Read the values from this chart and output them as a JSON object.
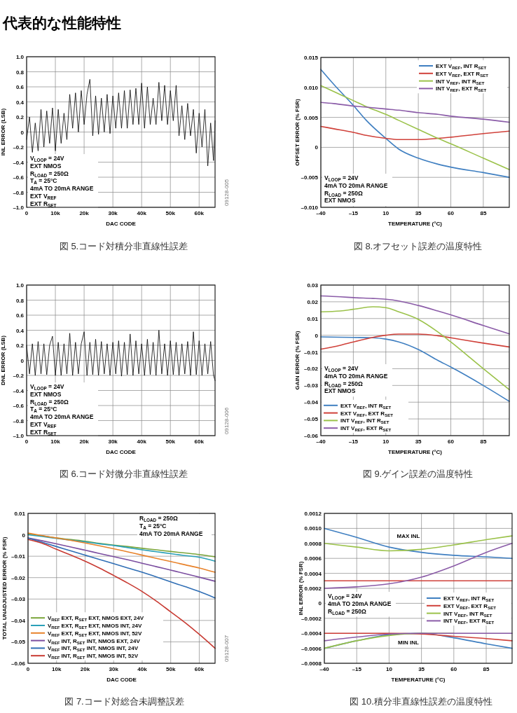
{
  "chart_data": [
    {
      "type": "other",
      "title": "代表的な性能特性"
    },
    {
      "type": "line",
      "title": "図 5.コード対積分非直線性誤差",
      "xlabel": "DAC CODE",
      "ylabel": "INL ERROR (LSB)",
      "xlim": [
        0,
        65535
      ],
      "ylim": [
        -1,
        1
      ],
      "xticks": [
        0,
        {
          "value": 10000,
          "label": "10k"
        },
        {
          "value": 20000,
          "label": "20k"
        },
        {
          "value": 30000,
          "label": "30k"
        },
        {
          "value": 40000,
          "label": "40k"
        },
        {
          "value": 50000,
          "label": "50k"
        },
        {
          "value": 60000,
          "label": "60k"
        }
      ],
      "yticks": [
        {
          "value": -1,
          "label": "–1.0"
        },
        {
          "value": -0.8,
          "label": "–0.8"
        },
        {
          "value": -0.6,
          "label": "–0.6"
        },
        {
          "value": -0.4,
          "label": "–0.4"
        },
        {
          "value": -0.2,
          "label": "–0.2"
        },
        0,
        0.2,
        0.4,
        0.6,
        0.8,
        {
          "value": 1,
          "label": "1.0"
        }
      ],
      "grid": true,
      "legend": false,
      "x": [
        0,
        1000,
        2000,
        3000,
        4000,
        5000,
        6000,
        7000,
        8000,
        9000,
        10000,
        11000,
        12000,
        13000,
        14000,
        15000,
        16000,
        17000,
        18000,
        19000,
        20000,
        21000,
        22000,
        23000,
        24000,
        25000,
        26000,
        27000,
        28000,
        29000,
        30000,
        31000,
        32000,
        33000,
        34000,
        35000,
        36000,
        37000,
        38000,
        39000,
        40000,
        41000,
        42000,
        43000,
        44000,
        45000,
        46000,
        47000,
        48000,
        49000,
        50000,
        51000,
        52000,
        53000,
        54000,
        55000,
        56000,
        57000,
        58000,
        59000,
        60000,
        61000,
        62000,
        63000,
        64000,
        65000,
        65535
      ],
      "series": [
        {
          "color": "#000000",
          "values": [
            -0.1,
            0.2,
            -0.27,
            0.12,
            -0.25,
            0.3,
            -0.2,
            0.28,
            -0.15,
            0.32,
            -0.25,
            0.3,
            -0.15,
            0.25,
            -0.1,
            0.5,
            0.05,
            0.52,
            0,
            0.55,
            0.1,
            0.5,
            0.7,
            -0.05,
            0.48,
            -0.03,
            0.45,
            0,
            0.5,
            -0.02,
            0.48,
            0.05,
            0.52,
            0.05,
            0.55,
            0.05,
            0.56,
            0.1,
            0.58,
            0.1,
            0.65,
            0.05,
            0.6,
            0.1,
            0.45,
            0.1,
            0.66,
            0.15,
            0.62,
            0.1,
            0.55,
            0.15,
            0.62,
            -0.05,
            0.35,
            -0.1,
            0.38,
            -0.05,
            0.3,
            -0.28,
            0.25,
            -0.2,
            0.3,
            -0.45,
            0.12,
            -0.38,
            0.15
          ]
        }
      ],
      "annotations": [
        "V$_{LOOP}$ = 24V",
        "EXT NMOS",
        "R$_{LOAD}$ = 250Ω",
        "T$_{A}$ = 25°C",
        "4mA TO 20mA RANGE",
        "EXT V$_{REF}$",
        "EXT R$_{SET}$",
        "09128-005"
      ]
    },
    {
      "type": "line",
      "title": "図 8.オフセット誤差の温度特性",
      "xlabel": "TEMPERATURE (°C)",
      "ylabel": "OFFSET ERROR (% FSR)",
      "xlim": [
        -40,
        105
      ],
      "ylim": [
        -0.01,
        0.015
      ],
      "xticks": [
        {
          "value": -40,
          "label": "–40"
        },
        {
          "value": -15,
          "label": "–15"
        },
        10,
        35,
        60,
        85
      ],
      "yticks": [
        {
          "value": -0.01,
          "label": "–0.010"
        },
        {
          "value": -0.005,
          "label": "–0.005"
        },
        0,
        0.005,
        {
          "value": 0.01,
          "label": "0.010"
        },
        0.015
      ],
      "grid": true,
      "legend": "top right",
      "x": [
        -40,
        -30,
        -15,
        -5,
        10,
        20,
        35,
        50,
        60,
        85,
        105
      ],
      "series": [
        {
          "name": "EXT V$_{REF}$, INT R$_{SET}$",
          "color": "#3f7fc1",
          "values": [
            0.013,
            0.0105,
            0.007,
            0.0045,
            0.0015,
            -0.0003,
            -0.0018,
            -0.0028,
            -0.0033,
            -0.0042,
            -0.005
          ]
        },
        {
          "name": "EXT V$_{REF}$, EXT R$_{SET}$",
          "color": "#d0413a",
          "values": [
            0.0035,
            0.0031,
            0.0025,
            0.002,
            0.0015,
            0.0013,
            0.0013,
            0.0015,
            0.0017,
            0.0023,
            0.0027
          ]
        },
        {
          "name": "INT V$_{REF}$, INT R$_{SET}$",
          "color": "#9bc24a",
          "values": [
            0.0103,
            0.0093,
            0.0078,
            0.0068,
            0.0055,
            0.0045,
            0.003,
            0.0015,
            0.0006,
            -0.0018,
            -0.0037
          ]
        },
        {
          "name": "INT V$_{REF}$, EXT R$_{SET}$",
          "color": "#8b5ca8",
          "values": [
            0.0075,
            0.0073,
            0.0069,
            0.0067,
            0.0064,
            0.0062,
            0.0058,
            0.0055,
            0.0052,
            0.0047,
            0.0042
          ]
        }
      ],
      "annotations": [
        "V$_{LOOP}$ = 24V",
        "4mA TO 20mA RANGE",
        "R$_{LOAD}$ = 250Ω",
        "EXT NMOS"
      ]
    },
    {
      "type": "line",
      "title": "図 6.コード対微分非直線性誤差",
      "xlabel": "DAC CODE",
      "ylabel": "DNL ERROR (LSB)",
      "xlim": [
        0,
        65535
      ],
      "ylim": [
        -1,
        1
      ],
      "xticks": [
        0,
        {
          "value": 10000,
          "label": "10k"
        },
        {
          "value": 20000,
          "label": "20k"
        },
        {
          "value": 30000,
          "label": "30k"
        },
        {
          "value": 40000,
          "label": "40k"
        },
        {
          "value": 50000,
          "label": "50k"
        },
        {
          "value": 60000,
          "label": "60k"
        }
      ],
      "yticks": [
        {
          "value": -1,
          "label": "–1.0"
        },
        {
          "value": -0.8,
          "label": "–0.8"
        },
        {
          "value": -0.6,
          "label": "–0.6"
        },
        {
          "value": -0.4,
          "label": "–0.4"
        },
        {
          "value": -0.2,
          "label": "–0.2"
        },
        0,
        0.2,
        0.4,
        0.6,
        0.8,
        {
          "value": 1,
          "label": "1.0"
        }
      ],
      "grid": true,
      "legend": false,
      "x": [
        0,
        1000,
        2000,
        3000,
        4000,
        5000,
        6000,
        7000,
        8000,
        9000,
        10000,
        11000,
        12000,
        13000,
        14000,
        15000,
        16000,
        17000,
        18000,
        19000,
        20000,
        21000,
        22000,
        23000,
        24000,
        25000,
        26000,
        27000,
        28000,
        29000,
        30000,
        31000,
        32000,
        33000,
        34000,
        35000,
        36000,
        37000,
        38000,
        39000,
        40000,
        41000,
        42000,
        43000,
        44000,
        45000,
        46000,
        47000,
        48000,
        49000,
        50000,
        51000,
        52000,
        53000,
        54000,
        55000,
        56000,
        57000,
        58000,
        59000,
        60000,
        61000,
        62000,
        63000,
        64000,
        65000,
        65535
      ],
      "series": [
        {
          "color": "#000000",
          "values": [
            0.2,
            -0.18,
            0.22,
            -0.2,
            0.25,
            -0.18,
            0.22,
            -0.19,
            0.2,
            0.32,
            -0.2,
            0.24,
            -0.2,
            0.22,
            -0.18,
            0.36,
            -0.2,
            0.24,
            -0.18,
            0.22,
            0.38,
            -0.2,
            0.24,
            -0.19,
            0.28,
            -0.2,
            0.25,
            -0.18,
            0.22,
            -0.2,
            0.24,
            -0.18,
            0.26,
            -0.21,
            0.24,
            -0.19,
            0.35,
            -0.2,
            0.26,
            -0.18,
            0.22,
            -0.2,
            0.28,
            -0.19,
            0.24,
            -0.2,
            0.4,
            -0.18,
            0.22,
            -0.2,
            0.26,
            -0.19,
            0.24,
            -0.2,
            0.22,
            -0.18,
            0.25,
            -0.2,
            0.38,
            -0.19,
            0.26,
            -0.2,
            0.22,
            -0.18,
            0.25,
            -0.2,
            -0.27
          ]
        }
      ],
      "annotations": [
        "V$_{LOOP}$ = 24V",
        "EXT NMOS",
        "R$_{LOAD}$ = 250Ω",
        "T$_{A}$ = 25°C",
        "4mA TO 20mA RANGE",
        "EXT V$_{REF}$",
        "EXT R$_{SET}$",
        "09128-006"
      ]
    },
    {
      "type": "line",
      "title": "図 9.ゲイン誤差の温度特性",
      "xlabel": "TEMPERATURE (°C)",
      "ylabel": "GAIN ERROR (% FSR)",
      "xlim": [
        -40,
        105
      ],
      "ylim": [
        -0.06,
        0.03
      ],
      "xticks": [
        {
          "value": -40,
          "label": "–40"
        },
        {
          "value": -15,
          "label": "–15"
        },
        10,
        35,
        60,
        85
      ],
      "yticks": [
        {
          "value": -0.06,
          "label": "–0.06"
        },
        {
          "value": -0.05,
          "label": "–0.05"
        },
        {
          "value": -0.04,
          "label": "–0.04"
        },
        {
          "value": -0.03,
          "label": "–0.03"
        },
        {
          "value": -0.02,
          "label": "–0.02"
        },
        {
          "value": -0.01,
          "label": "–0.01"
        },
        0,
        0.01,
        0.02,
        0.03
      ],
      "grid": true,
      "legend": "bottom left",
      "x": [
        -40,
        -25,
        -15,
        0,
        10,
        20,
        35,
        50,
        60,
        85,
        105
      ],
      "series": [
        {
          "name": "EXT V$_{REF}$, INT R$_{SET}$",
          "color": "#3f7fc1",
          "values": [
            -0.001,
            -0.0012,
            -0.0013,
            -0.0015,
            -0.0023,
            -0.004,
            -0.0085,
            -0.015,
            -0.019,
            -0.03,
            -0.0395
          ]
        },
        {
          "name": "EXT V$_{REF}$, EXT R$_{SET}$",
          "color": "#d0413a",
          "values": [
            -0.0083,
            -0.006,
            -0.004,
            -0.0013,
            0,
            0.0007,
            0.0007,
            -0.0003,
            -0.0015,
            -0.0047,
            -0.007
          ]
        },
        {
          "name": "INT V$_{REF}$, INT R$_{SET}$",
          "color": "#9bc24a",
          "values": [
            0.014,
            0.0145,
            0.0155,
            0.017,
            0.0165,
            0.014,
            0.0095,
            0.002,
            -0.004,
            -0.02,
            -0.0325
          ]
        },
        {
          "name": "INT V$_{REF}$, EXT R$_{SET}$",
          "color": "#8b5ca8",
          "values": [
            0.0235,
            0.023,
            0.0225,
            0.022,
            0.0215,
            0.0205,
            0.0178,
            0.0145,
            0.0122,
            0.0058,
            0.0008
          ]
        }
      ],
      "annotations": [
        "V$_{LOOP}$ = 24V",
        "4mA TO 20mA RANGE",
        "R$_{LOAD}$ = 250Ω",
        "EXT NMOS"
      ]
    },
    {
      "type": "line",
      "title": "図 7.コード対総合未調整誤差",
      "xlabel": "DAC CODE",
      "ylabel": "TOTAL UNADJUSTED ERROR (% FSR)",
      "xlim": [
        0,
        65535
      ],
      "ylim": [
        -0.06,
        0.01
      ],
      "xticks": [
        0,
        {
          "value": 10000,
          "label": "10k"
        },
        {
          "value": 20000,
          "label": "20k"
        },
        {
          "value": 30000,
          "label": "30k"
        },
        {
          "value": 40000,
          "label": "40k"
        },
        {
          "value": 50000,
          "label": "50k"
        },
        {
          "value": 60000,
          "label": "60k"
        }
      ],
      "yticks": [
        {
          "value": -0.06,
          "label": "–0.06"
        },
        {
          "value": -0.05,
          "label": "–0.05"
        },
        {
          "value": -0.04,
          "label": "–0.04"
        },
        {
          "value": -0.03,
          "label": "–0.03"
        },
        {
          "value": -0.02,
          "label": "–0.02"
        },
        {
          "value": -0.01,
          "label": "–0.01"
        },
        0,
        0.01
      ],
      "grid": true,
      "legend": "bottom left",
      "x": [
        0,
        5000,
        10000,
        15000,
        20000,
        25000,
        30000,
        35000,
        40000,
        45000,
        50000,
        55000,
        60000,
        65535
      ],
      "series": [
        {
          "name": "V$_{REF}$ EXT, R$_{SET}$ EXT, NMOS EXT, 24V",
          "color": "#7aa53a",
          "values": [
            0.0005,
            -0.0005,
            -0.0015,
            -0.0022,
            -0.003,
            -0.004,
            -0.0048,
            -0.0055,
            -0.0063,
            -0.007,
            -0.0078,
            -0.0085,
            -0.0092,
            -0.0103
          ]
        },
        {
          "name": "V$_{REF}$ EXT, R$_{SET}$ EXT, NMOS INT, 24V",
          "color": "#2aa0b8",
          "values": [
            0,
            -0.0008,
            -0.0017,
            -0.0025,
            -0.0033,
            -0.0042,
            -0.005,
            -0.006,
            -0.007,
            -0.0079,
            -0.0088,
            -0.0097,
            -0.0105,
            -0.0123
          ]
        },
        {
          "name": "V$_{REF}$ EXT, R$_{SET}$ EXT, NMOS INT, 52V",
          "color": "#e8822a",
          "values": [
            0.0008,
            -0.0004,
            -0.0015,
            -0.0026,
            -0.0038,
            -0.0051,
            -0.0065,
            -0.008,
            -0.0095,
            -0.011,
            -0.0125,
            -0.014,
            -0.0155,
            -0.0175
          ]
        },
        {
          "name": "V$_{REF}$ INT, R$_{SET}$ INT, NMOS EXT, 24V",
          "color": "#7b4ea0",
          "values": [
            -0.0015,
            -0.0028,
            -0.0042,
            -0.0057,
            -0.0072,
            -0.0087,
            -0.0102,
            -0.0117,
            -0.0133,
            -0.0149,
            -0.0165,
            -0.0181,
            -0.0198,
            -0.0217
          ]
        },
        {
          "name": "V$_{REF}$ INT, R$_{SET}$ INT, NMOS INT, 24V",
          "color": "#2f6eb5",
          "values": [
            -0.0015,
            -0.0035,
            -0.0055,
            -0.0075,
            -0.0095,
            -0.0115,
            -0.0135,
            -0.0155,
            -0.0175,
            -0.0197,
            -0.022,
            -0.0242,
            -0.0265,
            -0.0295
          ]
        },
        {
          "name": "V$_{REF}$ INT, R$_{SET}$ INT, NMOS INT, 52V",
          "color": "#c83a32",
          "values": [
            -0.0022,
            -0.004,
            -0.0068,
            -0.0095,
            -0.0123,
            -0.0155,
            -0.019,
            -0.0226,
            -0.0265,
            -0.031,
            -0.036,
            -0.041,
            -0.0465,
            -0.053
          ]
        }
      ],
      "annotations": [
        "R$_{LOAD}$ = 250Ω",
        "T$_{A}$ = 25°C",
        "4mA TO 20mA RANGE",
        "09128-007"
      ]
    },
    {
      "type": "line",
      "title": "図 10.積分非直線性誤差の温度特性",
      "xlabel": "TEMPERATURE (°C)",
      "ylabel": "INL ERROR (% FSR)",
      "xlim": [
        -40,
        105
      ],
      "ylim": [
        -0.0008,
        0.0012
      ],
      "xticks": [
        {
          "value": -40,
          "label": "–40"
        },
        {
          "value": -15,
          "label": "–15"
        },
        10,
        35,
        60,
        85
      ],
      "yticks": [
        {
          "value": -0.0008,
          "label": "–0.0008"
        },
        {
          "value": -0.0006,
          "label": "–0.0006"
        },
        {
          "value": -0.0004,
          "label": "–0.0004"
        },
        {
          "value": -0.0002,
          "label": "–0.0002"
        },
        0,
        0.0002,
        0.0004,
        0.0006,
        0.0008,
        {
          "value": 0.001,
          "label": "0.0010"
        },
        0.0012
      ],
      "grid": true,
      "legend": "right",
      "x": [
        -40,
        -15,
        10,
        35,
        60,
        85,
        105
      ],
      "series": [
        {
          "name": "EXT V$_{REF}$, INT R$_{SET}$",
          "color": "#3f7fc1",
          "values": [
            0.001,
            0.00088,
            0.00075,
            0.00068,
            0.00064,
            0.00062,
            0.0006
          ]
        },
        {
          "name": "EXT V$_{REF}$, EXT R$_{SET}$",
          "color": "#d0413a",
          "values": [
            0.0003,
            0.0003,
            0.0003,
            0.0003,
            0.0003,
            0.0003,
            0.0003
          ]
        },
        {
          "name": "INT V$_{REF}$, INT R$_{SET}$",
          "color": "#9bc24a",
          "values": [
            0.0008,
            0.00075,
            0.0007,
            0.00072,
            0.00078,
            0.00085,
            0.0009
          ]
        },
        {
          "name": "INT V$_{REF}$, EXT R$_{SET}$",
          "color": "#8b5ca8",
          "values": [
            0.0002,
            0.00022,
            0.00026,
            0.00035,
            0.0005,
            0.00068,
            0.0008
          ]
        },
        {
          "color": "#3f7fc1",
          "values": [
            -0.0006,
            -0.0005,
            -0.00042,
            -0.0004,
            -0.00046,
            -0.00054,
            -0.0006
          ]
        },
        {
          "color": "#d0413a",
          "values": [
            -0.0004,
            -0.0004,
            -0.0004,
            -0.00041,
            -0.00044,
            -0.00047,
            -0.0005
          ]
        },
        {
          "color": "#9bc24a",
          "values": [
            -0.0006,
            -0.0005,
            -0.00043,
            -0.0004,
            -0.0004,
            null,
            null
          ]
        },
        {
          "color": "#8b5ca8",
          "values": [
            -0.0005,
            -0.00045,
            -0.00041,
            -0.0004,
            -0.0004,
            -0.0004,
            -0.0004
          ]
        }
      ],
      "annotations": [
        "V$_{LOOP}$ = 24V",
        "4mA TO 20mA RANGE",
        "R$_{LOAD}$ = 250Ω",
        "MAX INL",
        "MIN INL"
      ]
    }
  ]
}
